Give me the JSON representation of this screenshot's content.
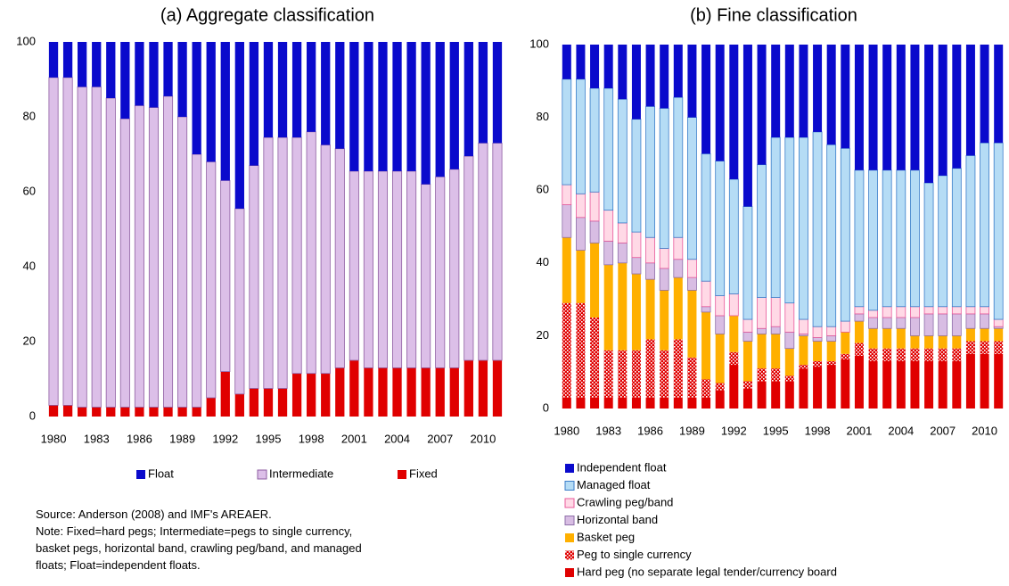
{
  "chart_data": [
    {
      "type": "bar",
      "stacked": true,
      "title": "(a)  Aggregate classification",
      "categories": [
        "1980",
        null,
        null,
        "1983",
        null,
        null,
        "1986",
        null,
        null,
        "1989",
        null,
        null,
        "1992",
        null,
        null,
        "1995",
        null,
        null,
        "1998",
        null,
        null,
        "2001",
        null,
        null,
        "2004",
        null,
        null,
        "2007",
        null,
        null,
        "2010",
        null
      ],
      "ylim": [
        0,
        100
      ],
      "yticks": [
        0,
        20,
        40,
        60,
        80,
        100
      ],
      "grid": false,
      "legend": "bottom-row",
      "series": [
        {
          "name": "Fixed",
          "color": "#e00000",
          "values": [
            3,
            3,
            2.5,
            2.5,
            2.5,
            2.5,
            2.5,
            2.5,
            2.5,
            2.5,
            2.5,
            5,
            12,
            6,
            7.5,
            7.5,
            7.5,
            11.5,
            11.5,
            11.5,
            13,
            15,
            13,
            13,
            13,
            13,
            13,
            13,
            13,
            15,
            15,
            15
          ]
        },
        {
          "name": "Intermediate",
          "color": "#dcbfe8",
          "stroke": "#8e5ea2",
          "values": [
            87.5,
            87.5,
            85.5,
            85.5,
            82.5,
            77,
            80.5,
            80,
            83,
            77.5,
            67.5,
            63,
            51,
            49.5,
            59.5,
            67,
            67,
            63,
            64.5,
            61,
            58.5,
            50.5,
            52.5,
            52.5,
            52.5,
            52.5,
            49,
            51,
            53,
            54.5,
            58,
            58
          ]
        },
        {
          "name": "Float",
          "color": "#0a0acc",
          "values": [
            9.5,
            9.5,
            12,
            12,
            15,
            20.5,
            17,
            17.5,
            14.5,
            20,
            30,
            32,
            37,
            44.5,
            33,
            25.5,
            25.5,
            25.5,
            24,
            27.5,
            28.5,
            34.5,
            34.5,
            34.5,
            34.5,
            34.5,
            38,
            36,
            34,
            30.5,
            27,
            27
          ]
        }
      ]
    },
    {
      "type": "bar",
      "stacked": true,
      "title": "(b)  Fine classification",
      "categories": [
        "1980",
        null,
        null,
        "1983",
        null,
        null,
        "1986",
        null,
        null,
        "1989",
        null,
        null,
        "1992",
        null,
        null,
        "1995",
        null,
        null,
        "1998",
        null,
        null,
        "2001",
        null,
        null,
        "2004",
        null,
        null,
        "2007",
        null,
        null,
        "2010",
        null
      ],
      "ylim": [
        0,
        100
      ],
      "yticks": [
        0,
        20,
        40,
        60,
        80,
        100
      ],
      "grid": false,
      "legend": "bottom-column",
      "series": [
        {
          "name": "Hard peg (no separate legal tender/currency board",
          "color": "#e00000",
          "values": [
            3,
            3,
            3,
            3,
            3,
            3,
            3,
            3,
            3,
            3,
            3,
            5,
            12,
            5.5,
            7.5,
            7.5,
            7.5,
            11,
            11.5,
            12,
            13.5,
            14.5,
            13,
            13,
            13,
            13,
            13,
            13,
            13,
            15,
            15,
            15
          ]
        },
        {
          "name": "Peg to single currency",
          "color": "#e00000",
          "hatch": true,
          "values": [
            26,
            26,
            22,
            13,
            13,
            13,
            16,
            13,
            16,
            11,
            5,
            2,
            3.5,
            2,
            3.5,
            3.5,
            1.5,
            1,
            1.5,
            1,
            1.5,
            3.5,
            3.5,
            3.5,
            3.5,
            3.5,
            3.5,
            3.5,
            3.5,
            3.5,
            3.5,
            3.5
          ]
        },
        {
          "name": "Basket peg",
          "color": "#ffb000",
          "values": [
            18,
            14.5,
            20.5,
            23.5,
            24,
            21,
            16.5,
            16.5,
            17,
            18.5,
            18.5,
            13.5,
            10,
            11,
            9.5,
            9.5,
            7.5,
            8,
            5.5,
            5.5,
            6,
            6,
            5.5,
            5.5,
            5.5,
            3.5,
            3.5,
            3.5,
            3.5,
            3.5,
            3.5,
            3.5
          ]
        },
        {
          "name": "Horizontal band",
          "color": "#d8bde3",
          "stroke": "#8e6ea8",
          "values": [
            9,
            9,
            6,
            6.5,
            5.5,
            4.5,
            4.5,
            6,
            5,
            3.5,
            1.5,
            5,
            0,
            2.5,
            1.5,
            2,
            4.5,
            0.5,
            1,
            1.5,
            0,
            2,
            3,
            3,
            3,
            5,
            6,
            6,
            6,
            4,
            4,
            0.5
          ]
        },
        {
          "name": "Crawling peg/band",
          "color": "#ffd9e6",
          "stroke": "#e85a9b",
          "values": [
            5.5,
            6.5,
            8,
            8.5,
            5.5,
            7,
            7,
            5.5,
            6,
            5,
            7,
            5.5,
            6,
            3.5,
            8.5,
            8,
            8,
            4,
            3,
            2.5,
            3,
            2,
            2,
            3,
            3,
            3,
            2,
            2,
            2,
            2,
            2,
            2
          ]
        },
        {
          "name": "Managed float",
          "color": "#b5dcf5",
          "stroke": "#3a7dc9",
          "values": [
            29,
            31.5,
            28.5,
            33.5,
            34,
            31,
            36,
            38.5,
            38.5,
            39,
            35,
            37,
            31.5,
            31,
            36.5,
            44,
            45.5,
            50,
            53.5,
            50,
            47.5,
            37.5,
            38.5,
            37.5,
            37.5,
            37.5,
            34,
            36,
            38,
            41.5,
            45,
            48.5
          ]
        },
        {
          "name": "Independent float",
          "color": "#0a0acc",
          "values": [
            9.5,
            9.5,
            12,
            12,
            15,
            20.5,
            17,
            17.5,
            14.5,
            20,
            30,
            32,
            37,
            44.5,
            33,
            25.5,
            25.5,
            25.5,
            24,
            27.5,
            28.5,
            34.5,
            34.5,
            34.5,
            34.5,
            34.5,
            38,
            36,
            34,
            30.5,
            27,
            27
          ]
        }
      ]
    }
  ],
  "notes": [
    "Source: Anderson (2008) and IMF's AREAER.",
    "Note: Fixed=hard pegs; Intermediate=pegs to single currency,",
    "basket pegs, horizontal band, crawling peg/band, and managed",
    "floats; Float=independent floats."
  ]
}
